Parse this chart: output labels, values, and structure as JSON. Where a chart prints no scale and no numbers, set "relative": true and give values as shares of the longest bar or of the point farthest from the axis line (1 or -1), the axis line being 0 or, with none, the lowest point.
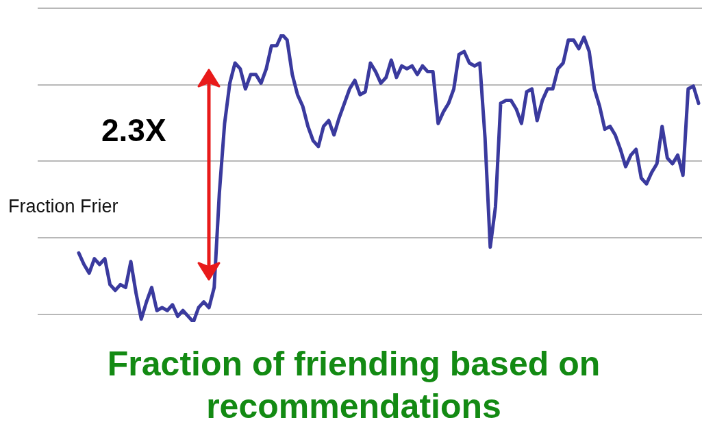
{
  "chart_data": {
    "type": "line",
    "relative": true,
    "title": "Fraction of friending based on recommendations",
    "ylabel": "Fraction Frier",
    "annotations": [
      "2.3X"
    ],
    "grid": true,
    "marker": "none",
    "line_style": "solid",
    "categories": [
      null,
      null,
      null,
      null,
      null,
      null,
      null,
      null,
      null,
      null,
      null,
      null,
      null,
      null,
      null,
      null,
      null,
      null,
      null,
      null,
      null,
      null,
      null,
      null,
      null,
      null,
      null,
      null,
      null,
      null,
      null,
      null,
      null,
      null,
      null,
      null,
      null,
      null,
      null,
      null,
      null,
      null,
      null,
      null,
      null,
      null,
      null,
      null,
      null,
      null,
      null,
      null,
      null,
      null,
      null,
      null,
      null,
      null,
      null,
      null,
      null,
      null,
      null,
      null,
      null,
      null,
      null,
      null,
      null,
      null,
      null,
      null,
      null,
      null,
      null,
      null,
      null,
      null,
      null,
      null,
      null,
      null,
      null,
      null,
      null,
      null,
      null,
      null,
      null,
      null,
      null,
      null,
      null,
      null,
      null,
      null,
      null,
      null,
      null,
      null,
      null,
      null,
      null,
      null,
      null,
      null,
      null,
      null,
      null,
      null,
      null,
      null,
      null,
      null,
      null,
      null,
      null,
      null,
      null,
      null
    ],
    "series": [
      {
        "color": "#3a3a9e",
        "values": [
          0.24,
          0.2,
          0.17,
          0.22,
          0.2,
          0.22,
          0.13,
          0.11,
          0.13,
          0.12,
          0.21,
          0.1,
          0.01,
          0.07,
          0.12,
          0.04,
          0.05,
          0.04,
          0.06,
          0.02,
          0.04,
          0.02,
          0.0,
          0.05,
          0.07,
          0.05,
          0.12,
          0.45,
          0.69,
          0.83,
          0.9,
          0.88,
          0.81,
          0.86,
          0.86,
          0.83,
          0.88,
          0.96,
          0.96,
          1.0,
          0.98,
          0.86,
          0.79,
          0.75,
          0.68,
          0.63,
          0.61,
          0.68,
          0.7,
          0.65,
          0.71,
          0.76,
          0.81,
          0.84,
          0.79,
          0.8,
          0.9,
          0.87,
          0.83,
          0.85,
          0.91,
          0.85,
          0.89,
          0.88,
          0.89,
          0.86,
          0.89,
          0.87,
          0.87,
          0.69,
          0.73,
          0.76,
          0.81,
          0.93,
          0.94,
          0.9,
          0.89,
          0.9,
          0.64,
          0.26,
          0.4,
          0.76,
          0.77,
          0.77,
          0.74,
          0.69,
          0.8,
          0.81,
          0.7,
          0.77,
          0.81,
          0.81,
          0.88,
          0.9,
          0.98,
          0.98,
          0.95,
          0.99,
          0.94,
          0.81,
          0.75,
          0.67,
          0.68,
          0.65,
          0.6,
          0.54,
          0.58,
          0.6,
          0.5,
          0.48,
          0.52,
          0.55,
          0.68,
          0.57,
          0.55,
          0.58,
          0.51,
          0.81,
          0.82,
          0.76
        ]
      }
    ]
  }
}
